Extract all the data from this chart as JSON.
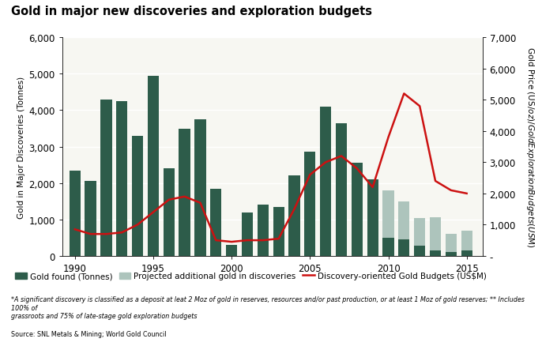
{
  "title": "Gold in major new discoveries and exploration budgets",
  "years": [
    1990,
    1991,
    1992,
    1993,
    1994,
    1995,
    1996,
    1997,
    1998,
    1999,
    2000,
    2001,
    2002,
    2003,
    2004,
    2005,
    2006,
    2007,
    2008,
    2009,
    2010,
    2011,
    2012,
    2013,
    2014,
    2015
  ],
  "gold_found": [
    2350,
    2050,
    4300,
    4250,
    3300,
    4950,
    2400,
    3500,
    3750,
    1850,
    300,
    1200,
    1400,
    1350,
    2200,
    2850,
    4100,
    3650,
    2550,
    2100,
    500,
    450,
    280,
    150,
    100,
    150
  ],
  "gold_projected": [
    0,
    0,
    0,
    0,
    0,
    0,
    0,
    0,
    0,
    0,
    0,
    0,
    0,
    0,
    0,
    0,
    0,
    0,
    0,
    0,
    1300,
    1050,
    750,
    900,
    500,
    550
  ],
  "exploration_budget": [
    850,
    700,
    700,
    750,
    1000,
    1400,
    1800,
    1900,
    1700,
    500,
    450,
    500,
    500,
    550,
    1500,
    2600,
    3000,
    3200,
    2800,
    2200,
    3800,
    5200,
    4800,
    2400,
    2100,
    2000
  ],
  "left_ylabel": "Gold in Major Discoveries (Tonnes)",
  "right_ylabel": "Gold Price (US$/oz) / Gold Exploration Budgets (US$M)",
  "left_ylim": [
    0,
    6000
  ],
  "right_ylim": [
    0,
    7000
  ],
  "left_yticks": [
    0,
    1000,
    2000,
    3000,
    4000,
    5000,
    6000
  ],
  "left_yticklabels": [
    "0",
    "1,000",
    "2,000",
    "3,000",
    "4,000",
    "5,000",
    "6,000"
  ],
  "right_yticks": [
    0,
    1000,
    2000,
    3000,
    4000,
    5000,
    6000,
    7000
  ],
  "right_yticklabels": [
    "-",
    "1,000",
    "2,000",
    "3,000",
    "4,000",
    "5,000",
    "6,000",
    "7,000"
  ],
  "bar_dark_color": "#2d5c4a",
  "bar_light_color": "#adc4bc",
  "line_color": "#cc1111",
  "background_color": "#ffffff",
  "plot_bg_color": "#f7f7f2",
  "legend_gold_found": "Gold found (Tonnes)",
  "legend_projected": "Projected additional gold in discoveries",
  "legend_line": "Discovery-oriented Gold Budgets (US$M)",
  "footnote": "*A significant discovery is classified as a deposit at leat 2 Moz of gold in reserves, resources and/or past production, or at least 1 Moz of gold reserves; ** Includes 100% of\ngrassroots and 75% of late-stage gold exploration budgets",
  "source": "Source: SNL Metals & Mining; World Gold Council",
  "xtick_positions": [
    1990,
    1995,
    2000,
    2005,
    2010,
    2015
  ],
  "xtick_labels": [
    "1990",
    "1995",
    "2000",
    "2005",
    "2010",
    "2015"
  ]
}
